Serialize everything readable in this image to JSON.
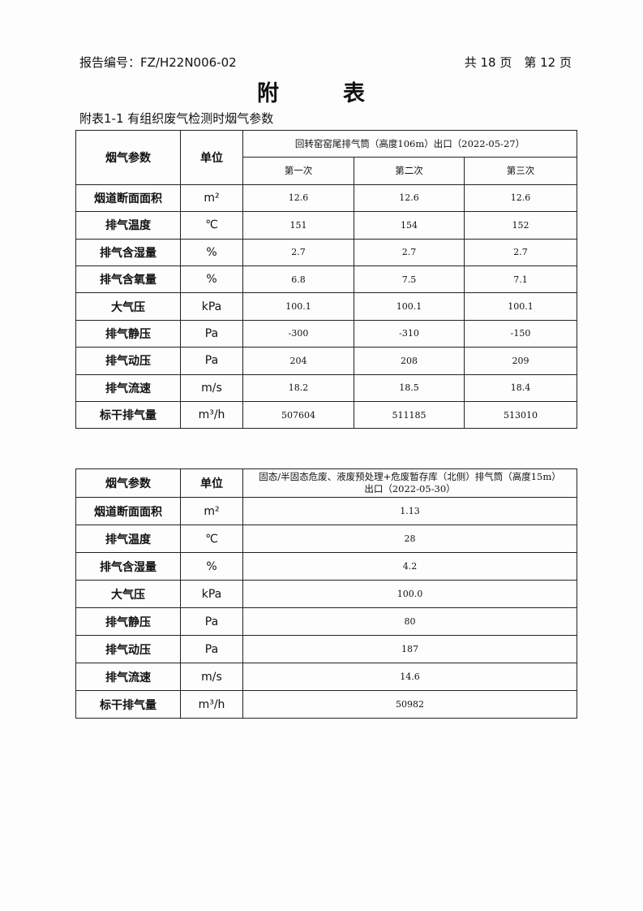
{
  "header": {
    "report_no": "报告编号：FZ/H22N006-02",
    "pages": "共 18 页　第 12 页"
  },
  "title": "附　表",
  "caption": "附表1-1  有组织废气检测时烟气参数",
  "table1": {
    "col_param": "烟气参数",
    "col_unit": "单位",
    "location": "回转窑窑尾排气筒（高度106m）出口（2022-05-27）",
    "runs": [
      "第一次",
      "第二次",
      "第三次"
    ],
    "rows": [
      {
        "param": "烟道断面面积",
        "unit": "m²",
        "values": [
          "12.6",
          "12.6",
          "12.6"
        ]
      },
      {
        "param": "排气温度",
        "unit": "℃",
        "values": [
          "151",
          "154",
          "152"
        ]
      },
      {
        "param": "排气含湿量",
        "unit": "%",
        "values": [
          "2.7",
          "2.7",
          "2.7"
        ]
      },
      {
        "param": "排气含氧量",
        "unit": "%",
        "values": [
          "6.8",
          "7.5",
          "7.1"
        ]
      },
      {
        "param": "大气压",
        "unit": "kPa",
        "values": [
          "100.1",
          "100.1",
          "100.1"
        ]
      },
      {
        "param": "排气静压",
        "unit": "Pa",
        "values": [
          "-300",
          "-310",
          "-150"
        ]
      },
      {
        "param": "排气动压",
        "unit": "Pa",
        "values": [
          "204",
          "208",
          "209"
        ]
      },
      {
        "param": "排气流速",
        "unit": "m/s",
        "values": [
          "18.2",
          "18.5",
          "18.4"
        ]
      },
      {
        "param": "标干排气量",
        "unit": "m³/h",
        "values": [
          "507604",
          "511185",
          "513010"
        ]
      }
    ]
  },
  "table2": {
    "col_param": "烟气参数",
    "col_unit": "单位",
    "location_line1": "固态/半固态危废、液废预处理+危废暂存库（北侧）排气筒（高度15m）",
    "location_line2": "出口（2022-05-30）",
    "rows": [
      {
        "param": "烟道断面面积",
        "unit": "m²",
        "value": "1.13"
      },
      {
        "param": "排气温度",
        "unit": "℃",
        "value": "28"
      },
      {
        "param": "排气含湿量",
        "unit": "%",
        "value": "4.2"
      },
      {
        "param": "大气压",
        "unit": "kPa",
        "value": "100.0"
      },
      {
        "param": "排气静压",
        "unit": "Pa",
        "value": "80"
      },
      {
        "param": "排气动压",
        "unit": "Pa",
        "value": "187"
      },
      {
        "param": "排气流速",
        "unit": "m/s",
        "value": "14.6"
      },
      {
        "param": "标干排气量",
        "unit": "m³/h",
        "value": "50982"
      }
    ]
  }
}
